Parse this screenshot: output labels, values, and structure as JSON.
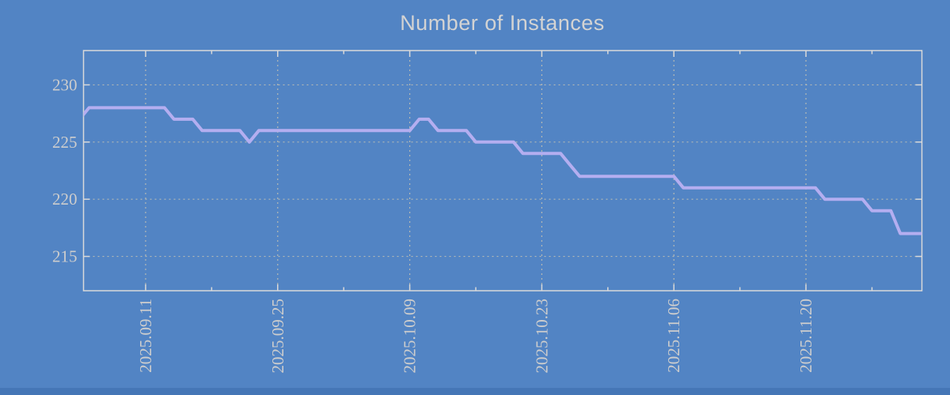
{
  "window": {
    "background_color": "#5284c4",
    "bottom_strip_color": "#4576b6"
  },
  "chart_data": {
    "type": "line",
    "title": "Number of Instances",
    "xlabel": "",
    "ylabel": "",
    "legend": "none",
    "grid": true,
    "frequency": "daily",
    "ylim": [
      212,
      233
    ],
    "yticks": [
      215,
      220,
      225,
      230
    ],
    "xlim": [
      "2025-09-04T10:00:00Z",
      "2025-12-02T07:00:00Z"
    ],
    "xticks_major": [
      {
        "date": "2025-09-11",
        "label": "2025.09.11"
      },
      {
        "date": "2025-09-25",
        "label": "2025.09.25"
      },
      {
        "date": "2025-10-09",
        "label": "2025.10.09"
      },
      {
        "date": "2025-10-23",
        "label": "2025.10.23"
      },
      {
        "date": "2025-11-06",
        "label": "2025.11.06"
      },
      {
        "date": "2025-11-20",
        "label": "2025.11.20"
      }
    ],
    "xticks_minor": [
      "2025-09-18",
      "2025-10-02",
      "2025-10-16",
      "2025-10-30",
      "2025-11-13",
      "2025-11-27"
    ],
    "series": [
      {
        "name": "instances",
        "color": "#b4aef0",
        "runs": [
          {
            "from": "2025-09-04",
            "to": "2025-09-04",
            "value": 227
          },
          {
            "from": "2025-09-05",
            "to": "2025-09-13",
            "value": 228
          },
          {
            "from": "2025-09-14",
            "to": "2025-09-16",
            "value": 227
          },
          {
            "from": "2025-09-17",
            "to": "2025-09-21",
            "value": 226
          },
          {
            "from": "2025-09-22",
            "to": "2025-09-22",
            "value": 225
          },
          {
            "from": "2025-09-23",
            "to": "2025-10-09",
            "value": 226
          },
          {
            "from": "2025-10-10",
            "to": "2025-10-11",
            "value": 227
          },
          {
            "from": "2025-10-12",
            "to": "2025-10-15",
            "value": 226
          },
          {
            "from": "2025-10-16",
            "to": "2025-10-20",
            "value": 225
          },
          {
            "from": "2025-10-21",
            "to": "2025-10-25",
            "value": 224
          },
          {
            "from": "2025-10-26",
            "to": "2025-10-26",
            "value": 223
          },
          {
            "from": "2025-10-27",
            "to": "2025-11-06",
            "value": 222
          },
          {
            "from": "2025-11-07",
            "to": "2025-11-21",
            "value": 221
          },
          {
            "from": "2025-11-22",
            "to": "2025-11-26",
            "value": 220
          },
          {
            "from": "2025-11-27",
            "to": "2025-11-29",
            "value": 219
          },
          {
            "from": "2025-11-30",
            "to": "2025-12-02",
            "value": 217
          }
        ]
      }
    ],
    "colors": {
      "line": "#b4aef0",
      "grid": "#cdc7b2",
      "border": "#d9d9d9",
      "tick_text": "#cdcdcd",
      "title_text": "#d3d3d3"
    }
  }
}
